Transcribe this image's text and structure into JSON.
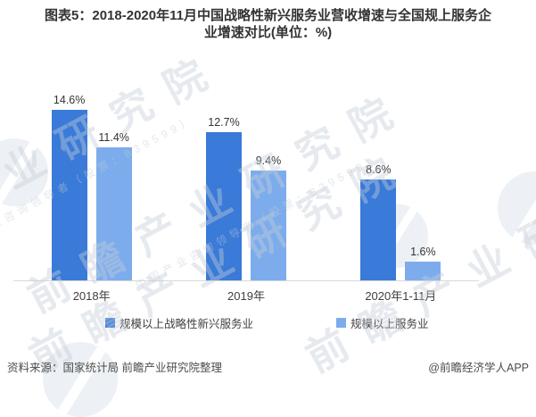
{
  "title": "图表5：2018-2020年11月中国战略性新兴服务业营收增速与全国规上服务企业增速对比(单位：%)",
  "title_lines": [
    "图表5：2018-2020年11月中国战略性新兴服务业营收增速与全国规上服务企",
    "业增速对比(单位：%)"
  ],
  "chart_data": {
    "type": "bar",
    "categories": [
      "2018年",
      "2019年",
      "2020年1-11月"
    ],
    "series": [
      {
        "name": "规模以上战略性新兴服务业",
        "color": "#3a7ad8",
        "values": [
          14.6,
          12.7,
          8.6
        ]
      },
      {
        "name": "规模以上服务业",
        "color": "#7cacec",
        "values": [
          11.4,
          9.4,
          1.6
        ]
      }
    ],
    "value_suffix": "%",
    "ylim": [
      0,
      16
    ],
    "grid": false,
    "data_labels": true,
    "legend_position": "bottom",
    "axis_color": "#d9d9d9"
  },
  "footer": {
    "source": "资料来源：国家统计局 前瞻产业研究院整理",
    "credit": "@前瞻经济学人APP"
  },
  "watermark": {
    "brand": "前瞻产业研究院",
    "tagline": "中国产业咨询领导者（股票：839599）"
  }
}
